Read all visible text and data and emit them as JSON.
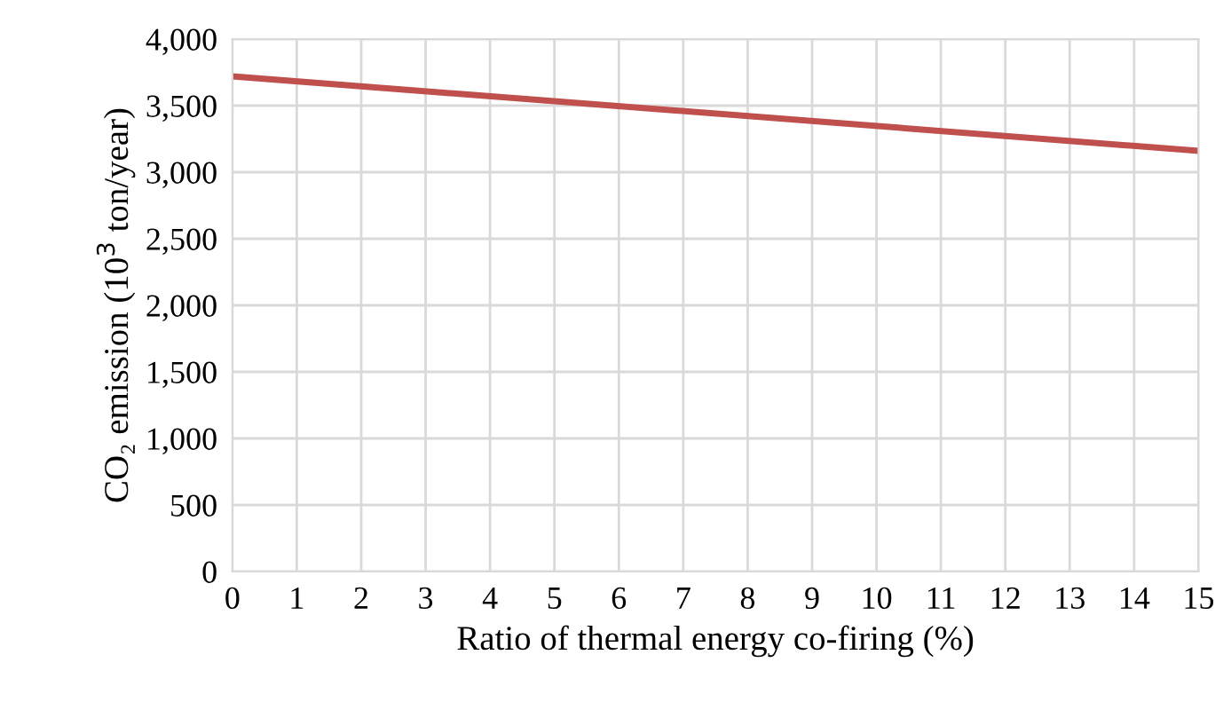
{
  "chart_data": {
    "type": "line",
    "xlabel": "Ratio of thermal energy co-firing (%)",
    "ylabel": "CO₂ emission (10$^{3}$ ton/year)",
    "series": [
      {
        "color": "#c0504d",
        "x": [
          0,
          15
        ],
        "values": [
          3720,
          3160
        ]
      }
    ],
    "xlim": [
      0,
      15
    ],
    "xticks": [
      0,
      1,
      2,
      3,
      4,
      5,
      6,
      7,
      8,
      9,
      10,
      11,
      12,
      13,
      14,
      15
    ],
    "ylim": [
      0,
      4000
    ],
    "yticks": [
      0,
      500,
      {
        "value": 1000,
        "label": "1,000"
      },
      {
        "value": 1500,
        "label": "1,500"
      },
      {
        "value": 2000,
        "label": "2,000"
      },
      {
        "value": 2500,
        "label": "2,500"
      },
      {
        "value": 3000,
        "label": "3,000"
      },
      {
        "value": 3500,
        "label": "3,500"
      },
      {
        "value": 4000,
        "label": "4,000"
      }
    ],
    "grid": true,
    "marker": "none",
    "line_style": "solid",
    "legend": false
  }
}
